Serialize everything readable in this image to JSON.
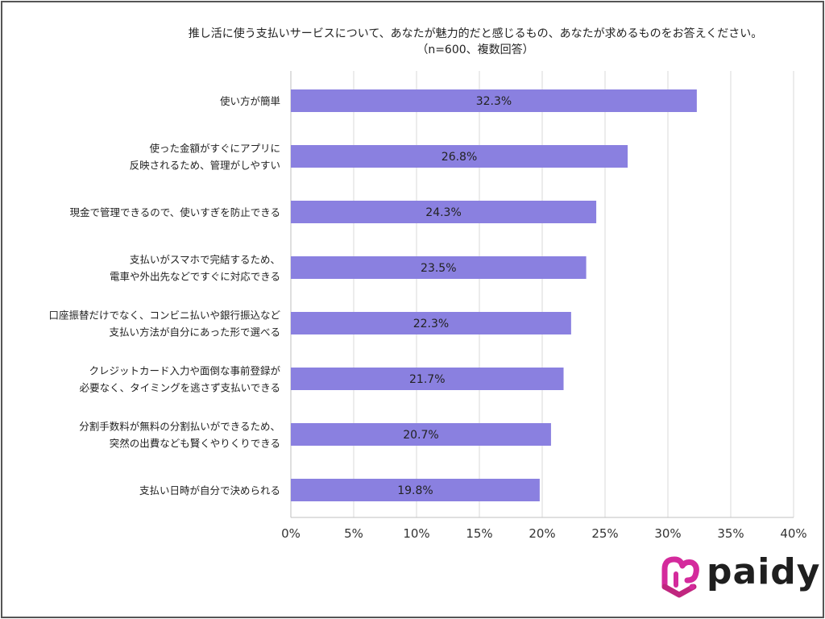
{
  "chart_data": {
    "type": "bar",
    "orientation": "horizontal",
    "title": "推し活に使う支払いサービスについて、あなたが魅力的だと感じるもの、あなたが求めるものをお答えください。",
    "subtitle": "（n=600、複数回答）",
    "categories": [
      "使い方が簡単",
      "使った金額がすぐにアプリに\n反映されるため、管理がしやすい",
      "現金で管理できるので、使いすぎを防止できる",
      "支払いがスマホで完結するため、\n電車や外出先などですぐに対応できる",
      "口座振替だけでなく、コンビニ払いや銀行振込など\n支払い方法が自分にあった形で選べる",
      "クレジットカード入力や面倒な事前登録が\n必要なく、タイミングを逃さず支払いできる",
      "分割手数料が無料の分割払いができるため、\n突然の出費なども賢くやりくりできる",
      "支払い日時が自分で決められる"
    ],
    "values": [
      32.3,
      26.8,
      24.3,
      23.5,
      22.3,
      21.7,
      20.7,
      19.8
    ],
    "data_labels": [
      "32.3%",
      "26.8%",
      "24.3%",
      "23.5%",
      "22.3%",
      "21.7%",
      "20.7%",
      "19.8%"
    ],
    "xlim": [
      0,
      40
    ],
    "x_ticks": [
      "0%",
      "5%",
      "10%",
      "15%",
      "20%",
      "25%",
      "30%",
      "35%",
      "40%"
    ],
    "grid": true,
    "bar_color": "#8a80e0",
    "grid_color": "#d9d9d9"
  },
  "logo": {
    "text": "paidy",
    "color": "#d42a9c"
  }
}
